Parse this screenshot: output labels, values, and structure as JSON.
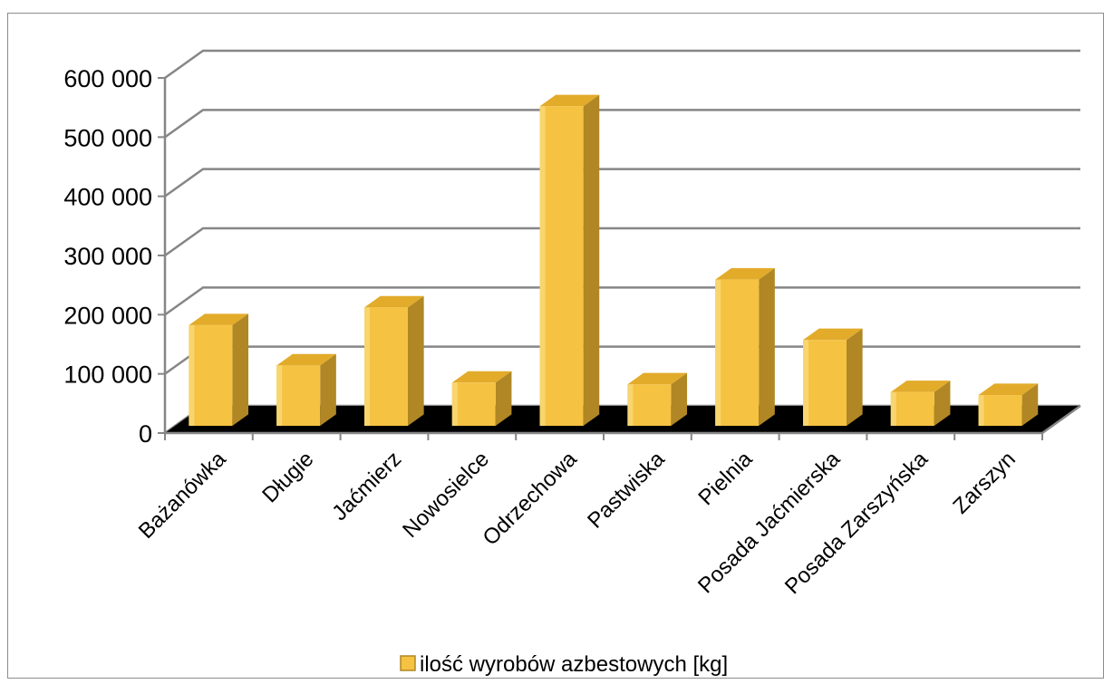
{
  "chart_data": {
    "type": "bar",
    "title": "",
    "xlabel": "",
    "ylabel": "",
    "ylim": [
      0,
      600000
    ],
    "yticks": [
      0,
      100000,
      200000,
      300000,
      400000,
      500000,
      600000
    ],
    "ytick_labels": [
      "0",
      "100 000",
      "200 000",
      "300 000",
      "400 000",
      "500 000",
      "600 000"
    ],
    "grid": true,
    "legend_position": "bottom",
    "categories": [
      "Bażanówka",
      "Długie",
      "Jaćmierz",
      "Nowosielce",
      "Odrzechowa",
      "Pastwiska",
      "Pielnia",
      "Posada Jaćmierska",
      "Posada Zarszyńska",
      "Zarszyn"
    ],
    "series": [
      {
        "name": "ilość wyrobów azbestowych [kg]",
        "values": [
          170000,
          102000,
          200000,
          73000,
          540000,
          70000,
          247000,
          145000,
          57000,
          52000
        ],
        "color": "#f5c242"
      }
    ]
  }
}
